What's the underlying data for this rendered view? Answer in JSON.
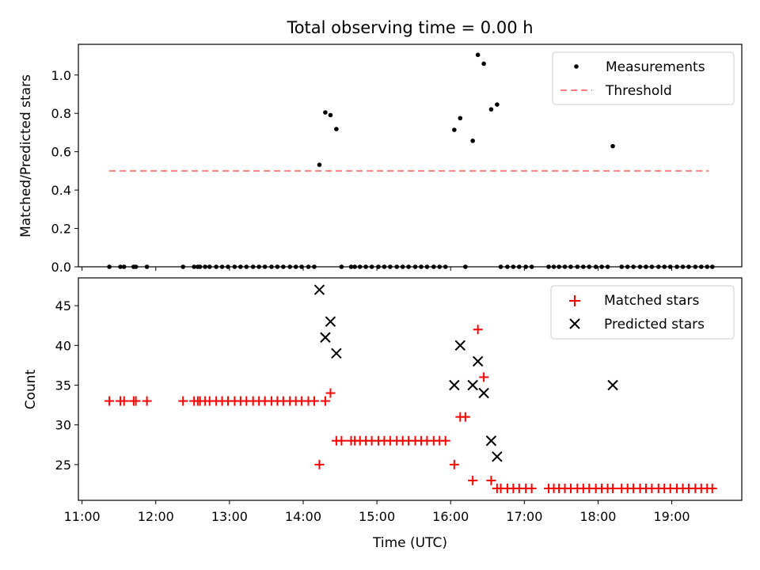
{
  "chart_data": [
    {
      "type": "scatter",
      "title": "Total observing time = 0.00 h",
      "ylabel": "Matched/Predicted stars",
      "xlim": [
        10.95,
        19.95
      ],
      "ylim": [
        0,
        1.16
      ],
      "yticks": [
        0.0,
        0.2,
        0.4,
        0.6,
        0.8,
        1.0
      ],
      "ytick_labels": [
        "0.0",
        "0.2",
        "0.4",
        "0.6",
        "0.8",
        "1.0"
      ],
      "legend_position": "top-right",
      "series": [
        {
          "name": "Measurements",
          "marker": "dot",
          "color": "#000000",
          "x": [
            11.37,
            11.52,
            11.57,
            11.7,
            11.73,
            11.88,
            12.37,
            12.52,
            12.57,
            12.6,
            12.67,
            12.73,
            12.82,
            12.9,
            12.98,
            13.07,
            13.15,
            13.23,
            13.32,
            13.4,
            13.48,
            13.57,
            13.65,
            13.73,
            13.82,
            13.9,
            13.98,
            14.07,
            14.15,
            14.22,
            14.3,
            14.37,
            14.45,
            14.52,
            14.65,
            14.7,
            14.77,
            14.85,
            14.93,
            15.02,
            15.1,
            15.18,
            15.27,
            15.35,
            15.43,
            15.52,
            15.6,
            15.68,
            15.77,
            15.85,
            15.93,
            16.05,
            16.13,
            16.2,
            16.3,
            16.37,
            16.45,
            16.55,
            16.63,
            16.68,
            16.77,
            16.85,
            16.93,
            17.02,
            17.1,
            17.33,
            17.4,
            17.47,
            17.55,
            17.63,
            17.72,
            17.8,
            17.88,
            17.97,
            18.05,
            18.13,
            18.2,
            18.32,
            18.4,
            18.48,
            18.57,
            18.65,
            18.73,
            18.82,
            18.9,
            18.98,
            19.07,
            19.15,
            19.23,
            19.32,
            19.4,
            19.48,
            19.55
          ],
          "y": [
            0,
            0,
            0,
            0,
            0,
            0,
            0,
            0,
            0,
            0,
            0,
            0,
            0,
            0,
            0,
            0,
            0,
            0,
            0,
            0,
            0,
            0,
            0,
            0,
            0,
            0,
            0,
            0,
            0,
            0.532,
            0.805,
            0.791,
            0.718,
            0,
            0,
            0,
            0,
            0,
            0,
            0,
            0,
            0,
            0,
            0,
            0,
            0,
            0,
            0,
            0,
            0,
            0,
            0.714,
            0.775,
            0,
            0.657,
            1.105,
            1.059,
            0.821,
            0.846,
            0,
            0,
            0,
            0,
            0,
            0,
            0,
            0,
            0,
            0,
            0,
            0,
            0,
            0,
            0,
            0,
            0,
            0.629,
            0,
            0,
            0,
            0,
            0,
            0,
            0,
            0,
            0,
            0,
            0,
            0,
            0,
            0,
            0,
            0
          ]
        },
        {
          "name": "Threshold",
          "marker": "dashed-line",
          "color": "#ff7f7f",
          "x": [
            11.37,
            19.5
          ],
          "y": [
            0.5,
            0.5
          ]
        }
      ]
    },
    {
      "type": "scatter",
      "xlabel": "Time (UTC)",
      "ylabel": "Count",
      "xlim": [
        10.95,
        19.95
      ],
      "ylim": [
        20.5,
        48.5
      ],
      "xticks": [
        11,
        12,
        13,
        14,
        15,
        16,
        17,
        18,
        19
      ],
      "xtick_labels": [
        "11:00",
        "12:00",
        "13:00",
        "14:00",
        "15:00",
        "16:00",
        "17:00",
        "18:00",
        "19:00"
      ],
      "yticks": [
        25,
        30,
        35,
        40,
        45
      ],
      "ytick_labels": [
        "25",
        "30",
        "35",
        "40",
        "45"
      ],
      "legend_position": "top-right",
      "series": [
        {
          "name": "Matched stars",
          "marker": "plus",
          "color": "#ff0000",
          "x": [
            11.37,
            11.52,
            11.57,
            11.7,
            11.73,
            11.88,
            12.37,
            12.52,
            12.57,
            12.6,
            12.67,
            12.73,
            12.82,
            12.9,
            12.98,
            13.07,
            13.15,
            13.23,
            13.32,
            13.4,
            13.48,
            13.57,
            13.65,
            13.73,
            13.82,
            13.9,
            13.98,
            14.07,
            14.15,
            14.22,
            14.3,
            14.37,
            14.45,
            14.52,
            14.65,
            14.7,
            14.77,
            14.85,
            14.93,
            15.02,
            15.1,
            15.18,
            15.27,
            15.35,
            15.43,
            15.52,
            15.6,
            15.68,
            15.77,
            15.85,
            15.93,
            16.05,
            16.13,
            16.2,
            16.3,
            16.37,
            16.45,
            16.55,
            16.63,
            16.68,
            16.77,
            16.85,
            16.93,
            17.02,
            17.1,
            17.33,
            17.4,
            17.47,
            17.55,
            17.63,
            17.72,
            17.8,
            17.88,
            17.97,
            18.05,
            18.13,
            18.2,
            18.32,
            18.4,
            18.48,
            18.57,
            18.65,
            18.73,
            18.82,
            18.9,
            18.98,
            19.07,
            19.15,
            19.23,
            19.32,
            19.4,
            19.48,
            19.55
          ],
          "y": [
            33,
            33,
            33,
            33,
            33,
            33,
            33,
            33,
            33,
            33,
            33,
            33,
            33,
            33,
            33,
            33,
            33,
            33,
            33,
            33,
            33,
            33,
            33,
            33,
            33,
            33,
            33,
            33,
            33,
            25,
            33,
            34,
            28,
            28,
            28,
            28,
            28,
            28,
            28,
            28,
            28,
            28,
            28,
            28,
            28,
            28,
            28,
            28,
            28,
            28,
            28,
            25,
            31,
            31,
            23,
            42,
            36,
            23,
            22,
            22,
            22,
            22,
            22,
            22,
            22,
            22,
            22,
            22,
            22,
            22,
            22,
            22,
            22,
            22,
            22,
            22,
            22,
            22,
            22,
            22,
            22,
            22,
            22,
            22,
            22,
            22,
            22,
            22,
            22,
            22,
            22,
            22,
            22
          ]
        },
        {
          "name": "Predicted stars",
          "marker": "x",
          "color": "#000000",
          "x": [
            14.22,
            14.3,
            14.37,
            14.45,
            16.05,
            16.13,
            16.3,
            16.37,
            16.45,
            16.55,
            16.63,
            18.2
          ],
          "y": [
            47,
            41,
            43,
            39,
            35,
            40,
            35,
            38,
            34,
            28,
            26,
            35
          ]
        }
      ]
    }
  ]
}
